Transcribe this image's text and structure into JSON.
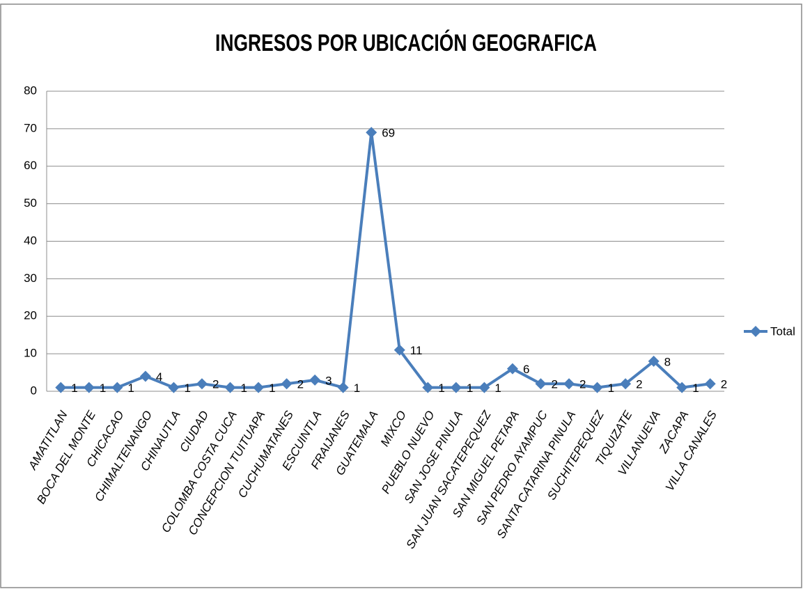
{
  "chart_data": {
    "type": "line",
    "title": "INGRESOS POR UBICACIÓN GEOGRAFICA",
    "categories": [
      "AMATITLAN",
      "BOCA DEL MONTE",
      "CHICACAO",
      "CHIMALTENANGO",
      "CHINAUTLA",
      "CIUDAD",
      "COLOMBA COSTA CUCA",
      "CONCEPCION TUITUAPA",
      "CUCHUMATANES",
      "ESCUINTLA",
      "FRAIJANES",
      "GUATEMALA",
      "MIXCO",
      "PUEBLO NUEVO",
      "SAN JOSE PINULA",
      "SAN JUAN SACATEPEQUEZ",
      "SAN MIGUEL PETAPA",
      "SAN PEDRO AYAMPUC",
      "SANTA CATARINA PINULA",
      "SUCHITEPEQUEZ",
      "TIQUIZATE",
      "VILLANUEVA",
      "ZACAPA",
      "VILLA CANALES"
    ],
    "series": [
      {
        "name": "Total",
        "color": "#4a7ebb",
        "values": [
          1,
          1,
          1,
          4,
          1,
          2,
          1,
          1,
          2,
          3,
          1,
          69,
          11,
          1,
          1,
          1,
          6,
          2,
          2,
          1,
          2,
          8,
          1,
          2
        ]
      }
    ],
    "ylim": [
      0,
      80
    ],
    "yticks": [
      0,
      10,
      20,
      30,
      40,
      50,
      60,
      70,
      80
    ],
    "grid": true,
    "legend": "right"
  }
}
